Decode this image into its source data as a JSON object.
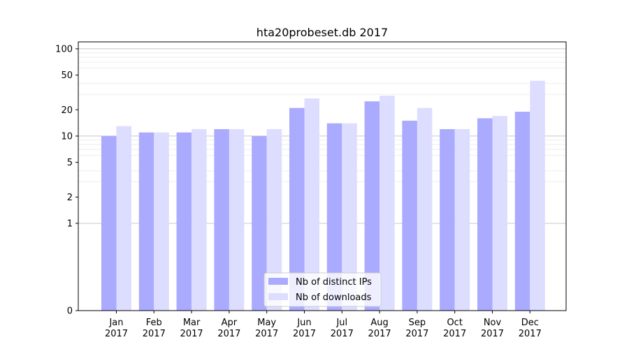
{
  "chart_data": {
    "type": "bar",
    "title": "hta20probeset.db 2017",
    "xlabel": "",
    "ylabel": "",
    "y_scale": "symlog",
    "ylim": [
      0,
      120
    ],
    "grid": "horizontal major and minor",
    "legend_position": "bottom-center",
    "categories": [
      [
        "Jan",
        "2017"
      ],
      [
        "Feb",
        "2017"
      ],
      [
        "Mar",
        "2017"
      ],
      [
        "Apr",
        "2017"
      ],
      [
        "May",
        "2017"
      ],
      [
        "Jun",
        "2017"
      ],
      [
        "Jul",
        "2017"
      ],
      [
        "Aug",
        "2017"
      ],
      [
        "Sep",
        "2017"
      ],
      [
        "Oct",
        "2017"
      ],
      [
        "Nov",
        "2017"
      ],
      [
        "Dec",
        "2017"
      ]
    ],
    "y_ticks": [
      0,
      1,
      2,
      5,
      10,
      20,
      50,
      100
    ],
    "series": [
      {
        "name": "Nb of distinct IPs",
        "color": "#aaaaff",
        "values": [
          10,
          11,
          11,
          12,
          10,
          21,
          14,
          25,
          15,
          12,
          16,
          19
        ]
      },
      {
        "name": "Nb of downloads",
        "color": "#ddddff",
        "values": [
          13,
          11,
          12,
          12,
          12,
          27,
          14,
          29,
          21,
          12,
          17,
          43
        ]
      }
    ]
  }
}
